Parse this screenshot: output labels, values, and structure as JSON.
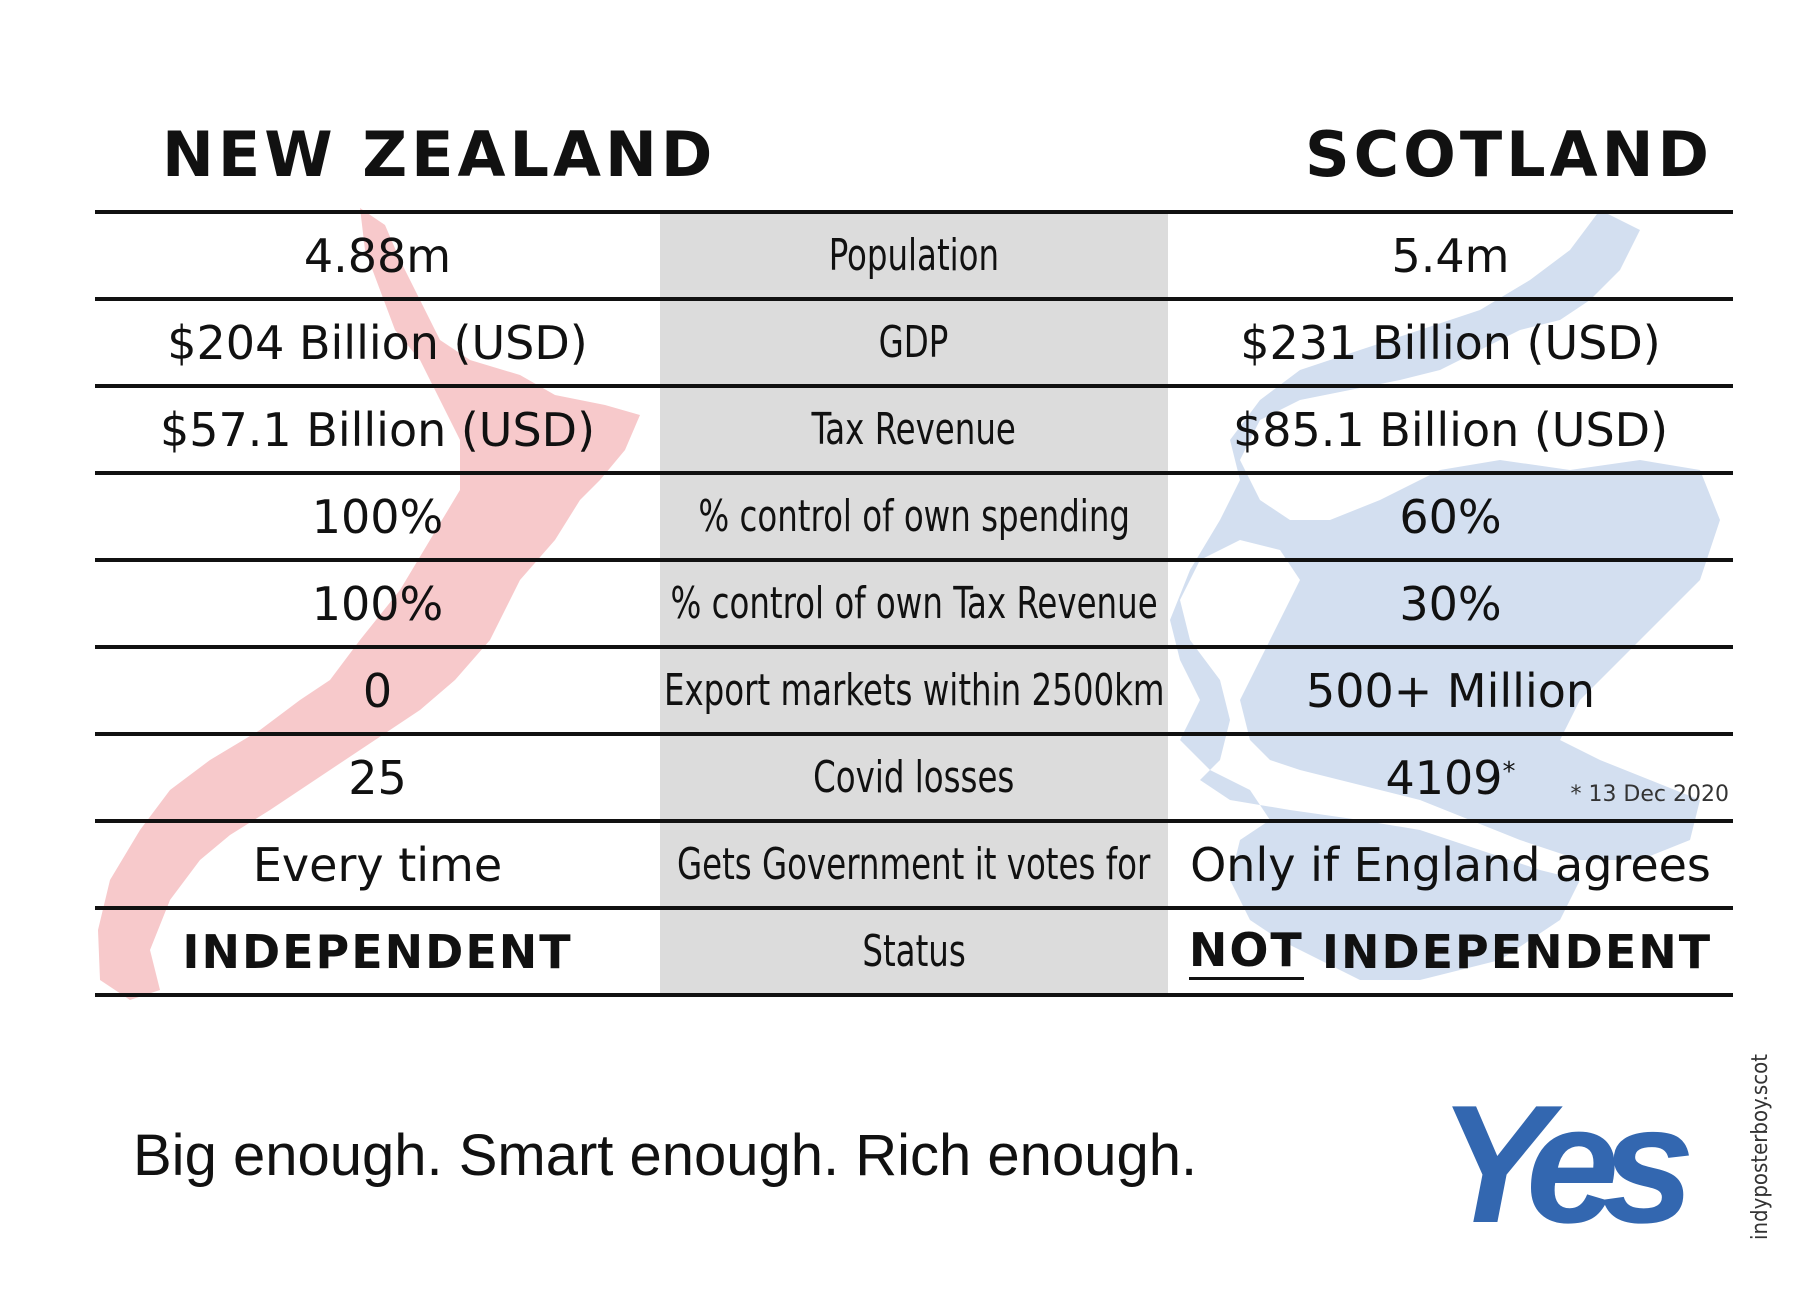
{
  "headers": {
    "left": "NEW ZEALAND",
    "right": "SCOTLAND"
  },
  "rows": [
    {
      "left": "4.88m",
      "label": "Population",
      "right": "5.4m"
    },
    {
      "left": "$204 Billion (USD)",
      "label": "GDP",
      "right": "$231 Billion (USD)"
    },
    {
      "left": "$57.1 Billion (USD)",
      "label": "Tax Revenue",
      "right": "$85.1 Billion (USD)"
    },
    {
      "left": "100%",
      "label": "% control of own spending",
      "right": "60%"
    },
    {
      "left": "100%",
      "label": "% control of own Tax Revenue",
      "right": "30%"
    },
    {
      "left": "0",
      "label": "Export markets within 2500km",
      "right": "500+ Million"
    },
    {
      "left": "25",
      "label": "Covid losses",
      "right": "4109",
      "right_sup": "*",
      "note": "* 13 Dec 2020"
    },
    {
      "left": "Every time",
      "label": "Gets Government it votes for",
      "right": "Only if England agrees"
    },
    {
      "left": "INDEPENDENT",
      "label": "Status",
      "right_emph": "NOT",
      "right": "INDEPENDENT"
    }
  ],
  "tagline": "Big enough. Smart enough. Rich enough.",
  "logo": "Yes",
  "credit": "indyposterboy.scot",
  "colors": {
    "nz_map": "#f7c9cb",
    "scotland_map": "#d3dff0",
    "logo": "#3367b0",
    "label_column": "#dcdcdc"
  }
}
